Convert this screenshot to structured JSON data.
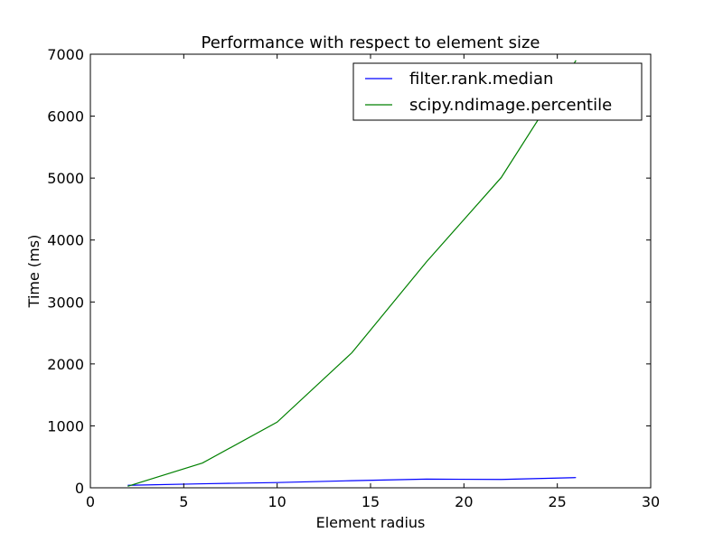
{
  "chart_data": {
    "type": "line",
    "title": "Performance with respect to element size",
    "xlabel": "Element radius",
    "ylabel": "Time (ms)",
    "xlim": [
      0,
      30
    ],
    "ylim": [
      0,
      7000
    ],
    "x_ticks": [
      0,
      5,
      10,
      15,
      20,
      25,
      30
    ],
    "y_ticks": [
      0,
      1000,
      2000,
      3000,
      4000,
      5000,
      6000,
      7000
    ],
    "x_tick_labels": [
      "0",
      "5",
      "10",
      "15",
      "20",
      "25",
      "30"
    ],
    "y_tick_labels": [
      "0",
      "1000",
      "2000",
      "3000",
      "4000",
      "5000",
      "6000",
      "7000"
    ],
    "grid": false,
    "legend_position": "top-right",
    "series": [
      {
        "name": "filter.rank.median",
        "color": "#0000ff",
        "x": [
          2,
          6,
          10,
          14,
          18,
          22,
          26
        ],
        "y": [
          40,
          65,
          85,
          115,
          140,
          135,
          165
        ]
      },
      {
        "name": "scipy.ndimage.percentile",
        "color": "#008000",
        "x": [
          2,
          6,
          10,
          14,
          18,
          22,
          26
        ],
        "y": [
          25,
          400,
          1060,
          2180,
          3650,
          5010,
          6900
        ]
      }
    ]
  }
}
